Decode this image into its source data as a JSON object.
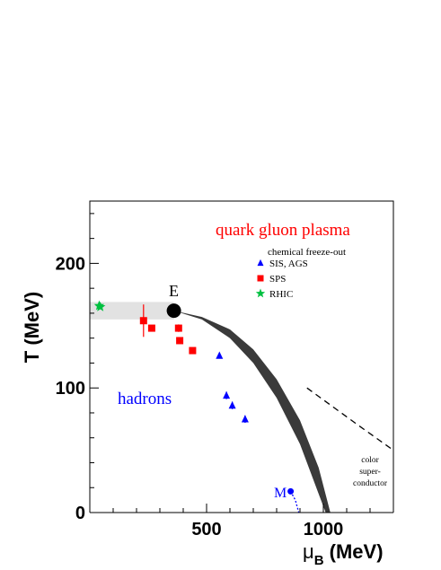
{
  "chart_data": {
    "type": "scatter",
    "title": "",
    "xlabel": {
      "main": "μ",
      "sub": "B",
      "unit": " (MeV)"
    },
    "ylabel": "T (MeV)",
    "xlim": [
      0,
      1300
    ],
    "ylim": [
      0,
      250
    ],
    "x_ticks": [
      500,
      1000
    ],
    "y_ticks": [
      0,
      100,
      200
    ],
    "grid": false,
    "legend_position": "top-right",
    "legend_title": "chemical freeze-out",
    "region_labels": {
      "qgp": "quark gluon plasma",
      "hadrons": "hadrons",
      "critical_point": "E",
      "nuclear_matter": "M",
      "color_sc_1": "color",
      "color_sc_2": "super-",
      "color_sc_3": "conductor"
    },
    "critical_point": {
      "x": 360,
      "y": 162
    },
    "nuclear_matter_point": {
      "x": 860,
      "y": 17
    },
    "crossover_band": {
      "x_start": 0,
      "x_end": 360,
      "y_center": 162,
      "half_width": 7
    },
    "transition_band": {
      "upper": [
        [
          360,
          162
        ],
        [
          480,
          157
        ],
        [
          600,
          147
        ],
        [
          700,
          131
        ],
        [
          800,
          107
        ],
        [
          900,
          74
        ],
        [
          980,
          36
        ],
        [
          1030,
          0
        ]
      ],
      "lower": [
        [
          360,
          162
        ],
        [
          480,
          155
        ],
        [
          600,
          140
        ],
        [
          700,
          120
        ],
        [
          800,
          92
        ],
        [
          900,
          55
        ],
        [
          980,
          15
        ],
        [
          1010,
          0
        ]
      ]
    },
    "csc_boundary": [
      [
        930,
        100
      ],
      [
        1040,
        85
      ],
      [
        1150,
        70
      ],
      [
        1240,
        58
      ],
      [
        1300,
        50
      ]
    ],
    "nuclear_liquid_gas": [
      [
        860,
        17
      ],
      [
        880,
        10
      ],
      [
        895,
        0
      ]
    ],
    "series": [
      {
        "name": "SIS, AGS",
        "marker": "triangle",
        "color": "#0000ff",
        "points": [
          {
            "x": 555,
            "y": 126,
            "err": 0
          },
          {
            "x": 585,
            "y": 94,
            "err": 3
          },
          {
            "x": 610,
            "y": 86,
            "err": 3
          },
          {
            "x": 665,
            "y": 75,
            "err": 3
          }
        ]
      },
      {
        "name": "SPS",
        "marker": "square",
        "color": "#ff0000",
        "points": [
          {
            "x": 230,
            "y": 154,
            "err": 13
          },
          {
            "x": 265,
            "y": 148,
            "err": 0
          },
          {
            "x": 380,
            "y": 148,
            "err": 3
          },
          {
            "x": 385,
            "y": 138,
            "err": 0
          },
          {
            "x": 440,
            "y": 130,
            "err": 0
          }
        ]
      },
      {
        "name": "RHIC",
        "marker": "star",
        "color": "#00c040",
        "points": [
          {
            "x": 40,
            "y": 166,
            "err": 0
          },
          {
            "x": 45,
            "y": 165,
            "err": 0
          }
        ]
      }
    ]
  }
}
